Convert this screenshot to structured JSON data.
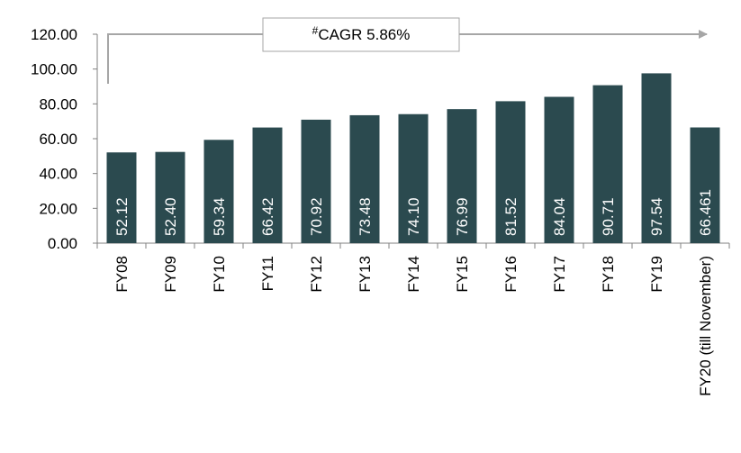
{
  "chart_data": {
    "type": "bar",
    "annotation": {
      "marker": "#",
      "text": "CAGR 5.86%"
    },
    "categories": [
      "FY08",
      "FY09",
      "FY10",
      "FY11",
      "FY12",
      "FY13",
      "FY14",
      "FY15",
      "FY16",
      "FY17",
      "FY18",
      "FY19",
      "FY20 (till November)"
    ],
    "values": [
      52.12,
      52.4,
      59.34,
      66.42,
      70.92,
      73.48,
      74.1,
      76.99,
      81.52,
      84.04,
      90.71,
      97.54,
      66.461
    ],
    "value_labels": [
      "52.12",
      "52.40",
      "59.34",
      "66.42",
      "70.92",
      "73.48",
      "74.10",
      "76.99",
      "81.52",
      "84.04",
      "90.71",
      "97.54",
      "66.461"
    ],
    "color": "#2b4a4f",
    "ylim": [
      0,
      120
    ],
    "yticks": [
      {
        "value": 0,
        "label": "0.00"
      },
      {
        "value": 20,
        "label": "20.00"
      },
      {
        "value": 40,
        "label": "40.00"
      },
      {
        "value": 60,
        "label": "60.00"
      },
      {
        "value": 80,
        "label": "80.00"
      },
      {
        "value": 100,
        "label": "100.00"
      },
      {
        "value": 120,
        "label": "120.00"
      }
    ]
  }
}
